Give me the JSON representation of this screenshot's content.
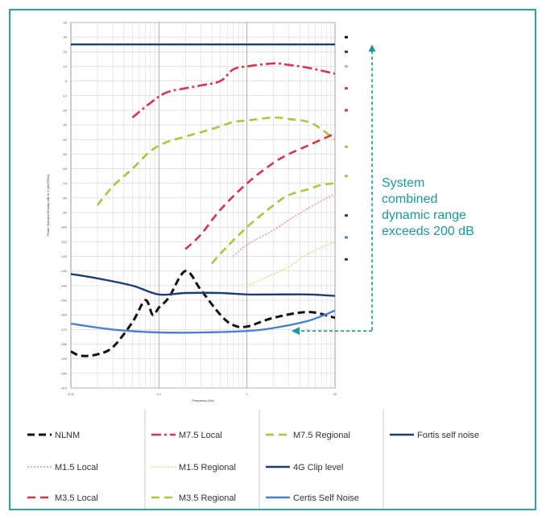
{
  "chart_data": {
    "type": "line",
    "title": "",
    "xlabel": "Frequency (Hz)",
    "ylabel": "Power Spectral Density (dB re 1 (m/s²)²/Hz)",
    "xscale": "log",
    "xlim": [
      0.01,
      10
    ],
    "ylim": [
      -210,
      40
    ],
    "x_ticks": [
      0.01,
      0.1,
      1,
      10
    ],
    "x_tick_labels": [
      "0.01",
      "0.1",
      "1",
      "10"
    ],
    "y_ticks": [
      40,
      30,
      20,
      10,
      0,
      -10,
      -20,
      -30,
      -40,
      -50,
      -60,
      -70,
      -80,
      -90,
      -100,
      -110,
      -120,
      -130,
      -140,
      -150,
      -160,
      -170,
      -180,
      -190,
      -200,
      -210
    ],
    "grid": true,
    "legend_position": "bottom",
    "series": [
      {
        "name": "NLNM",
        "color": "#111111",
        "dash": "dashed-bold",
        "x": [
          0.01,
          0.013,
          0.02,
          0.03,
          0.05,
          0.07,
          0.085,
          0.1,
          0.13,
          0.2,
          0.3,
          0.5,
          0.7,
          1,
          2,
          5,
          10
        ],
        "y": [
          -185,
          -188,
          -187,
          -182,
          -165,
          -150,
          -160,
          -155,
          -148,
          -130,
          -143,
          -160,
          -167,
          -168,
          -162,
          -158,
          -162
        ]
      },
      {
        "name": "M7.5 Local",
        "color": "#d9334d",
        "dash": "dashdot",
        "x": [
          0.05,
          0.08,
          0.12,
          0.2,
          0.3,
          0.5,
          0.7,
          1,
          2,
          3,
          5,
          10
        ],
        "y": [
          -25,
          -15,
          -8,
          -5,
          -3,
          0,
          8,
          10,
          12,
          11,
          9,
          5
        ]
      },
      {
        "name": "M7.5 Regional",
        "color": "#a5c93a",
        "dash": "dashed",
        "x": [
          0.02,
          0.03,
          0.05,
          0.08,
          0.12,
          0.2,
          0.3,
          0.5,
          0.7,
          1,
          2,
          3,
          5,
          7,
          10
        ],
        "y": [
          -85,
          -72,
          -60,
          -48,
          -42,
          -38,
          -35,
          -31,
          -28,
          -27,
          -25,
          -26,
          -28,
          -33,
          -40
        ]
      },
      {
        "name": "Fortis self noise",
        "color": "#1c3f73",
        "dash": "solid",
        "x": [
          0.01,
          0.02,
          0.05,
          0.1,
          0.2,
          0.5,
          1,
          2,
          5,
          10
        ],
        "y": [
          -132,
          -135,
          -140,
          -146,
          -145,
          -145,
          -146,
          -146,
          -146,
          -147
        ]
      },
      {
        "name": "M1.5 Local",
        "color": "#f0a0b0",
        "dash": "dotted",
        "x": [
          0.7,
          1,
          2,
          3,
          5,
          10
        ],
        "y": [
          -120,
          -112,
          -102,
          -95,
          -87,
          -77
        ]
      },
      {
        "name": "M1.5 Regional",
        "color": "#d7e39a",
        "dash": "dotted",
        "x": [
          1,
          2,
          3,
          5,
          10
        ],
        "y": [
          -140,
          -132,
          -127,
          -118,
          -110
        ]
      },
      {
        "name": "4G Clip level",
        "color": "#1c3f73",
        "dash": "solid",
        "x": [
          0.01,
          10
        ],
        "y": [
          25,
          25
        ]
      },
      {
        "name": "M3.5 Local",
        "color": "#d9334d",
        "dash": "dashed",
        "x": [
          0.2,
          0.3,
          0.5,
          1,
          2,
          3,
          5,
          7,
          10
        ],
        "y": [
          -115,
          -105,
          -88,
          -70,
          -56,
          -50,
          -44,
          -40,
          -36
        ]
      },
      {
        "name": "M3.5 Regional",
        "color": "#a5c93a",
        "dash": "dashed",
        "x": [
          0.4,
          0.5,
          1,
          2,
          3,
          5,
          7,
          10
        ],
        "y": [
          -125,
          -118,
          -100,
          -85,
          -78,
          -74,
          -71,
          -70
        ]
      },
      {
        "name": "Certis Self Noise",
        "color": "#4a7fd4",
        "dash": "solid",
        "x": [
          0.01,
          0.03,
          0.1,
          0.3,
          1,
          2,
          5,
          10
        ],
        "y": [
          -166,
          -170,
          -172,
          -172,
          -171,
          -169,
          -164,
          -157
        ]
      }
    ],
    "annotation": {
      "lines": [
        "System",
        "combined",
        "dynamic range",
        "exceeds 200 dB"
      ],
      "color": "#1a9a9a"
    }
  }
}
